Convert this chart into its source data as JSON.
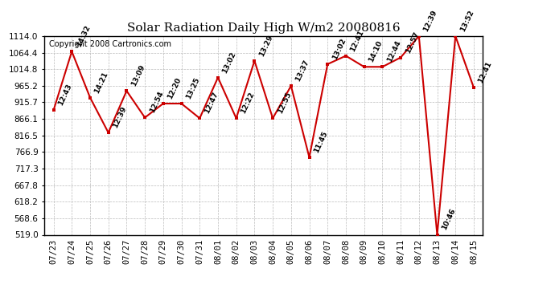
{
  "title": "Solar Radiation Daily High W/m2 20080816",
  "copyright": "Copyright 2008 Cartronics.com",
  "dates": [
    "07/23",
    "07/24",
    "07/25",
    "07/26",
    "07/27",
    "07/28",
    "07/29",
    "07/30",
    "07/31",
    "08/01",
    "08/02",
    "08/03",
    "08/04",
    "08/05",
    "08/06",
    "08/07",
    "08/08",
    "08/09",
    "08/10",
    "08/11",
    "08/12",
    "08/13",
    "08/14",
    "08/15"
  ],
  "values": [
    892.0,
    1068.0,
    930.0,
    825.0,
    950.0,
    870.0,
    912.0,
    912.0,
    868.0,
    990.0,
    868.0,
    1040.0,
    868.0,
    965.0,
    751.0,
    1030.0,
    1055.0,
    1022.0,
    1022.0,
    1050.0,
    1114.0,
    519.0,
    1114.0,
    960.0
  ],
  "time_labels": [
    "12:43",
    "14:32",
    "14:21",
    "12:39",
    "13:09",
    "12:54",
    "12:20",
    "13:25",
    "12:47",
    "13:02",
    "12:22",
    "13:29",
    "12:55",
    "13:37",
    "11:45",
    "13:02",
    "12:41",
    "14:10",
    "12:44",
    "12:57",
    "12:39",
    "10:46",
    "13:52",
    "12:41"
  ],
  "ymin": 519.0,
  "ymax": 1114.0,
  "yticks": [
    519.0,
    568.6,
    618.2,
    667.8,
    717.3,
    766.9,
    816.5,
    866.1,
    915.7,
    965.2,
    1014.8,
    1064.4,
    1114.0
  ],
  "line_color": "#cc0000",
  "marker_color": "#cc0000",
  "bg_color": "#ffffff",
  "grid_color": "#bbbbbb",
  "label_color": "#000000",
  "label_fontsize": 6.5,
  "title_fontsize": 11,
  "copyright_fontsize": 7
}
